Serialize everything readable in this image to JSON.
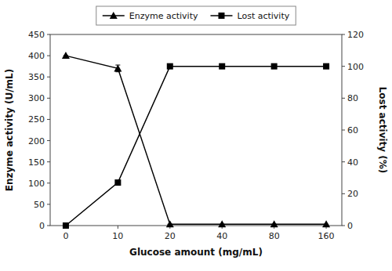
{
  "chart_data": {
    "type": "line",
    "x_label": "Glucose amount (mg/mL)",
    "y_label": "Enzyme activity (U/mL)",
    "y2_label": "Lost activity (%)",
    "categories": [
      "0",
      "10",
      "20",
      "40",
      "80",
      "160"
    ],
    "series": [
      {
        "name": "Enzyme activity",
        "color": "#000000",
        "marker": "triangle",
        "values": [
          400,
          370,
          3,
          3,
          3,
          3
        ],
        "errors": [
          0,
          8,
          0,
          0,
          0,
          0
        ]
      },
      {
        "name": "Lost activity",
        "color": "#000000",
        "marker": "square",
        "axis": "y2",
        "values": [
          0,
          27,
          100,
          100,
          100,
          100
        ]
      }
    ],
    "ylim": [
      0,
      450
    ],
    "yticks": [
      0,
      50,
      100,
      150,
      200,
      250,
      300,
      350,
      400,
      450
    ],
    "y2lim": [
      0,
      120
    ],
    "y2ticks": [
      0,
      20,
      40,
      60,
      80,
      100,
      120
    ],
    "grid": false,
    "legend": "top"
  }
}
